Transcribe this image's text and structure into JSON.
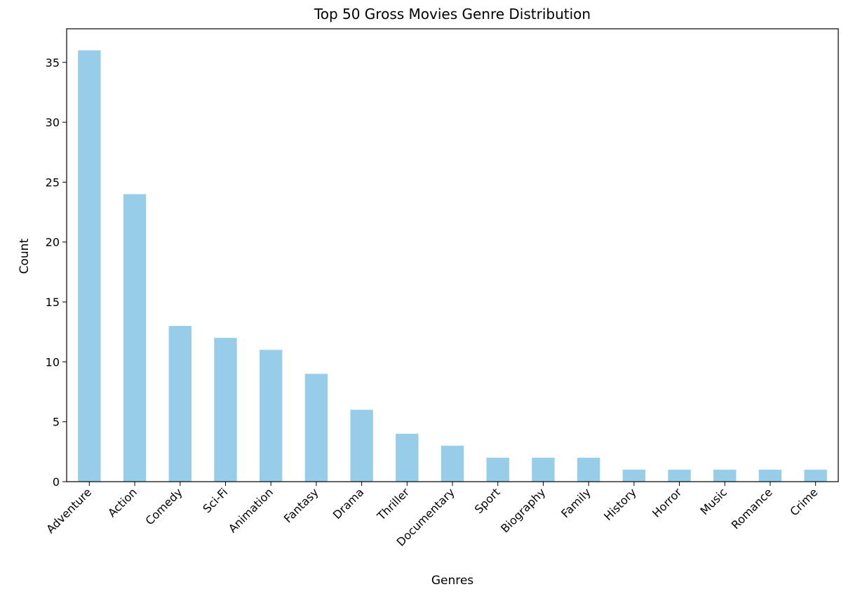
{
  "chart_data": {
    "type": "bar",
    "title": "Top 50 Gross Movies Genre Distribution",
    "xlabel": "Genres",
    "ylabel": "Count",
    "categories": [
      "Adventure",
      "Action",
      "Comedy",
      "Sci-Fi",
      "Animation",
      "Fantasy",
      "Drama",
      "Thriller",
      "Documentary",
      "Sport",
      "Biography",
      "Family",
      "History",
      "Horror",
      "Music",
      "Romance",
      "Crime"
    ],
    "values": [
      36,
      24,
      13,
      12,
      11,
      9,
      6,
      4,
      3,
      2,
      2,
      2,
      1,
      1,
      1,
      1,
      1
    ],
    "ylim": [
      0,
      37.8
    ],
    "yticks": [
      0,
      5,
      10,
      15,
      20,
      25,
      30,
      35
    ],
    "bar_color": "#97cde9",
    "grid": false,
    "legend": "none"
  }
}
